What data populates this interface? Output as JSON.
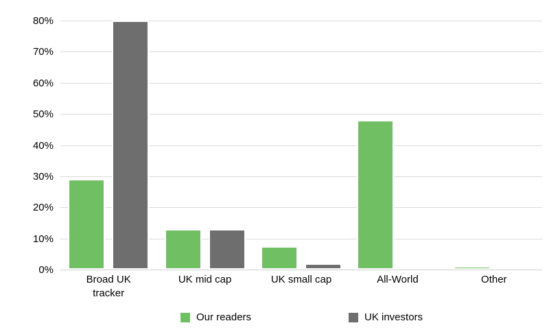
{
  "chart_data": {
    "type": "bar",
    "title": "",
    "categories": [
      "Broad UK tracker",
      "UK mid cap",
      "UK small cap",
      "All-World",
      "Other"
    ],
    "category_label_lines": [
      [
        "Broad UK",
        "tracker"
      ],
      [
        "UK mid cap"
      ],
      [
        "UK small cap"
      ],
      [
        "All-World"
      ],
      [
        "Other"
      ]
    ],
    "series": [
      {
        "name": "Our readers",
        "color": "#71bf63",
        "values": [
          29,
          13,
          7.5,
          48,
          1
        ]
      },
      {
        "name": "UK investors",
        "color": "#6e6e6e",
        "values": [
          80,
          13,
          2,
          0.3,
          0.5
        ]
      }
    ],
    "ylabel": "",
    "xlabel": "",
    "ylim": [
      0,
      80
    ],
    "ytick_step": 10,
    "ytick_labels": [
      "0%",
      "10%",
      "20%",
      "30%",
      "40%",
      "50%",
      "60%",
      "70%",
      "80%"
    ],
    "grid": "horizontal",
    "gridline_color": "#d9d9d9",
    "legend_position": "bottom"
  },
  "legend": {
    "item1_label": "Our readers",
    "item2_label": "UK investors"
  },
  "colors": {
    "series1": "#71bf63",
    "series2": "#6e6e6e",
    "gridline": "#d9d9d9",
    "background": "#ffffff",
    "text": "#000000"
  }
}
